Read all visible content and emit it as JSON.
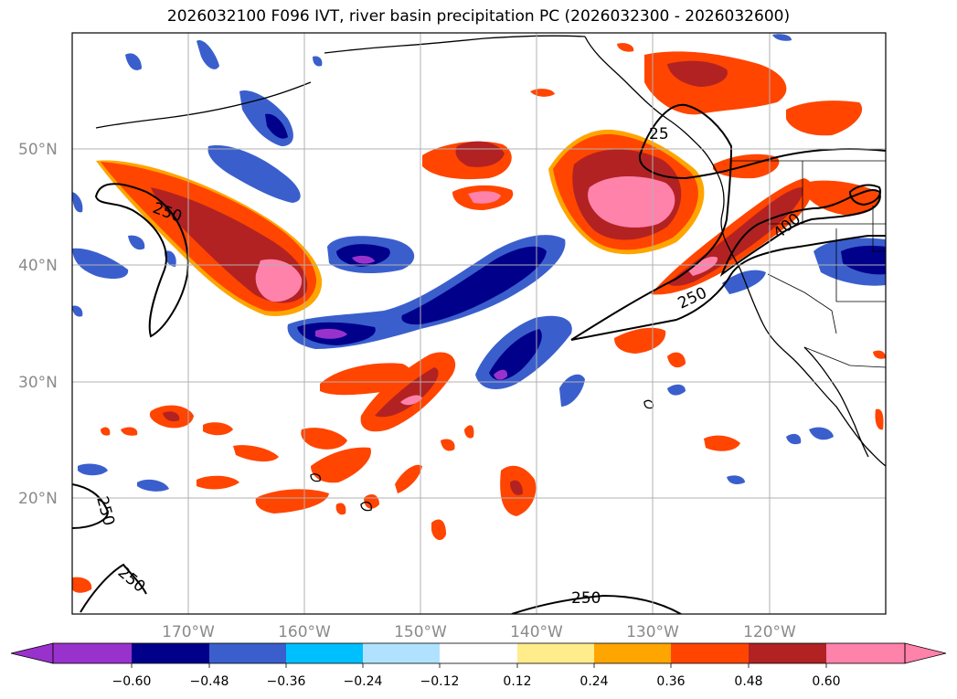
{
  "title": "2026032100 F096 IVT, river basin precipitation PC (2026032300 - 2026032600)",
  "lat_labels": [
    "50°N",
    "40°N",
    "30°N",
    "20°N"
  ],
  "lon_labels": [
    "170°W",
    "160°W",
    "150°W",
    "140°W",
    "130°W",
    "120°W"
  ],
  "contour_labels": {
    "c250_west": "250",
    "c250_east": "250",
    "c250_nw": "25",
    "c400": "400",
    "c250_sw1": "250",
    "c250_sw2": "250",
    "c250_south": "250"
  },
  "colorbar": {
    "ticks": [
      "−0.60",
      "−0.48",
      "−0.36",
      "−0.24",
      "−0.12",
      "0.12",
      "0.24",
      "0.36",
      "0.48",
      "0.60"
    ],
    "colors": [
      "#9932cc",
      "#00008b",
      "#3a5fcd",
      "#00bfff",
      "#b0e2ff",
      "#ffffff",
      "#ffec8b",
      "#ffa500",
      "#ff4500",
      "#b22222",
      "#ff82ab"
    ]
  }
}
